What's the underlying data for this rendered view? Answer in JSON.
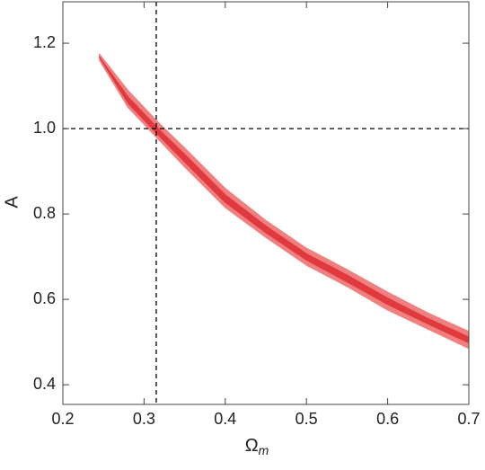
{
  "chart_data": {
    "type": "contour",
    "xlabel": "Ω",
    "xlabel_sub": "m",
    "ylabel": "A",
    "xlim": [
      0.2,
      0.7
    ],
    "ylim": [
      0.354,
      1.297
    ],
    "xticks": [
      0.2,
      0.3,
      0.4,
      0.5,
      0.6,
      0.7
    ],
    "yticks": [
      0.4,
      0.6,
      0.8,
      {
        "value": 1,
        "label": "1.0"
      },
      1.2
    ],
    "x": [
      0.245,
      0.28,
      0.3,
      0.32,
      0.35,
      0.4,
      0.45,
      0.5,
      0.55,
      0.6,
      0.65,
      0.7
    ],
    "bands": [
      {
        "color": "#f08080",
        "upper": [
          1.175,
          1.09,
          1.05,
          1.01,
          0.955,
          0.86,
          0.785,
          0.72,
          0.67,
          0.617,
          0.568,
          0.525
        ],
        "lower": [
          1.16,
          1.05,
          1.01,
          0.97,
          0.91,
          0.815,
          0.745,
          0.68,
          0.63,
          0.575,
          0.53,
          0.485
        ]
      },
      {
        "color": "#e0393e",
        "upper": [
          1.168,
          1.075,
          1.035,
          0.995,
          0.94,
          0.845,
          0.772,
          0.707,
          0.657,
          0.603,
          0.555,
          0.512
        ],
        "lower": [
          1.167,
          1.06,
          1.02,
          0.98,
          0.922,
          0.827,
          0.756,
          0.692,
          0.641,
          0.588,
          0.542,
          0.498
        ]
      }
    ],
    "hlines": [
      1.0
    ],
    "vlines": [
      0.315
    ]
  }
}
